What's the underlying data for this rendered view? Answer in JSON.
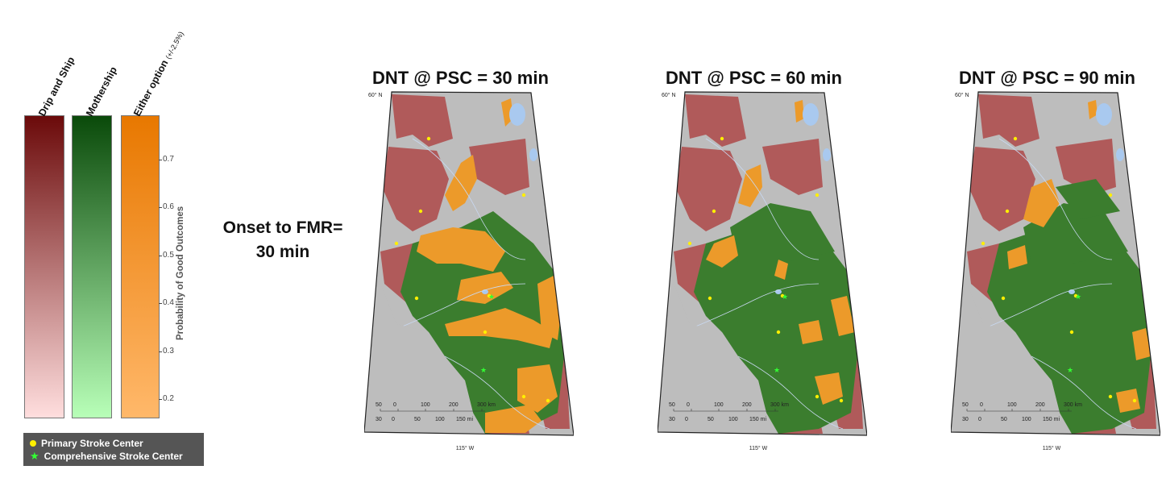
{
  "legend": {
    "columns": [
      {
        "label": "Drip and Ship",
        "suffix": "",
        "color_top": "#6b0a0a",
        "color_bottom": "#ffdede"
      },
      {
        "label": "Mothership",
        "suffix": "",
        "color_top": "#0a4a0a",
        "color_bottom": "#b8ffb8"
      },
      {
        "label": "Either option",
        "suffix": "(+/-2.5%)",
        "color_top": "#e87800",
        "color_bottom": "#ffb86a"
      }
    ],
    "axis_title": "Probability of Good Outcomes",
    "ticks": [
      "0.7",
      "0.6",
      "0.5",
      "0.4",
      "0.3",
      "0.2"
    ]
  },
  "markers": {
    "primary": "Primary Stroke Center",
    "comprehensive": "Comprehensive Stroke Center"
  },
  "row_label": {
    "line1": "Onset to FMR=",
    "line2": "30 min"
  },
  "maps": [
    {
      "title": "DNT @ PSC = 30 min",
      "lat_label": "60° N",
      "lon_label": "115° W",
      "orange_level": "high"
    },
    {
      "title": "DNT @ PSC = 60 min",
      "lat_label": "60° N",
      "lon_label": "115° W",
      "orange_level": "medium"
    },
    {
      "title": "DNT @ PSC = 90 min",
      "lat_label": "60° N",
      "lon_label": "115° W",
      "orange_level": "low"
    }
  ],
  "scale_bar": {
    "km_labels": [
      "50",
      "0",
      "100",
      "200",
      "300 km"
    ],
    "mi_labels": [
      "30",
      "0",
      "50",
      "100",
      "150 mi"
    ]
  },
  "colors": {
    "drip_and_ship": "#b05a5a",
    "mothership": "#3b7d2e",
    "either": "#ec9a2a",
    "no_data": "#bdbdbd",
    "water": "#a9c9ef"
  }
}
